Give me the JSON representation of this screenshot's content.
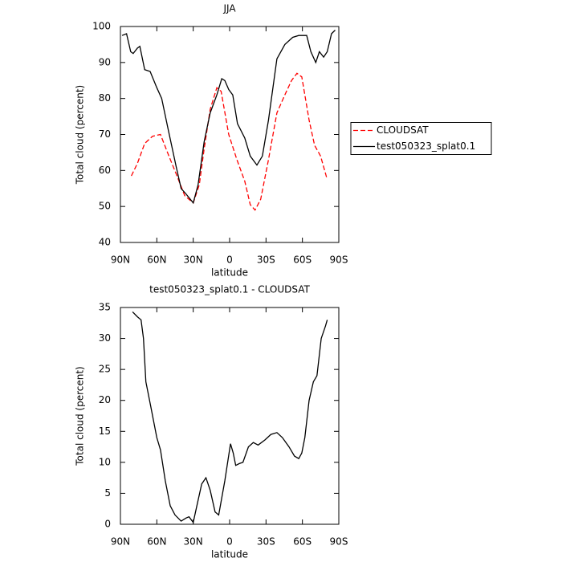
{
  "chart_data": [
    {
      "type": "line",
      "title": "JJA",
      "xlabel": "latitude",
      "ylabel": "Total cloud (percent)",
      "xlim": [
        90,
        -90
      ],
      "ylim": [
        40,
        100
      ],
      "xticks": [
        {
          "value": 90,
          "label": "90N"
        },
        {
          "value": 60,
          "label": "60N"
        },
        {
          "value": 30,
          "label": "30N"
        },
        0,
        {
          "value": -30,
          "label": "30S"
        },
        {
          "value": -60,
          "label": "60S"
        },
        {
          "value": -90,
          "label": "90S"
        }
      ],
      "yticks": [
        40,
        50,
        60,
        70,
        80,
        90,
        100
      ],
      "legend": "right",
      "series": [
        {
          "name": "CLOUDSAT",
          "color": "#ff0000",
          "dash": true,
          "x": [
            81,
            76,
            70,
            63.5,
            57,
            50,
            44,
            37,
            30,
            25,
            21,
            16,
            10.5,
            7,
            0.7,
            -6,
            -12.5,
            -17,
            -21,
            -25.6,
            -32,
            -39,
            -45.5,
            -51,
            -55.5,
            -59.5,
            -65.5,
            -70,
            -75,
            -80
          ],
          "values": [
            58.5,
            62,
            67.5,
            69.5,
            70,
            64,
            59,
            53,
            51,
            56,
            66,
            77,
            83,
            82,
            70,
            63,
            57,
            50.5,
            49,
            52,
            63,
            76,
            81,
            85,
            87,
            86,
            74,
            67,
            64,
            58
          ]
        },
        {
          "name": "test050323_splat0.1",
          "color": "#000000",
          "dash": false,
          "x": [
            88.7,
            85,
            81.5,
            79.5,
            76,
            74,
            70,
            65.5,
            60,
            56,
            51,
            44,
            40,
            36,
            30,
            26,
            21,
            16,
            10.5,
            6.5,
            4,
            0.7,
            -2.6,
            -6.5,
            -12.5,
            -17,
            -22.5,
            -27,
            -32,
            -39,
            -45.5,
            -52,
            -57,
            -63.5,
            -67,
            -71,
            -74,
            -77.5,
            -80.5,
            -84,
            -87
          ],
          "values": [
            97.5,
            98,
            93,
            92.5,
            94,
            94.5,
            88,
            87.5,
            83,
            80,
            72,
            61,
            55,
            53.5,
            51,
            56,
            68,
            76,
            81,
            85.5,
            85,
            82.5,
            81,
            73,
            69,
            64,
            61.5,
            64,
            74,
            91,
            95,
            97,
            97.5,
            97.5,
            93,
            90,
            93,
            91.5,
            93,
            98,
            99
          ]
        }
      ]
    },
    {
      "type": "line",
      "title": "test050323_splat0.1 - CLOUDSAT",
      "xlabel": "latitude",
      "ylabel": "Total cloud (percent)",
      "xlim": [
        90,
        -90
      ],
      "ylim": [
        0,
        35
      ],
      "xticks": [
        {
          "value": 90,
          "label": "90N"
        },
        {
          "value": 60,
          "label": "60N"
        },
        {
          "value": 30,
          "label": "30N"
        },
        0,
        {
          "value": -30,
          "label": "30S"
        },
        {
          "value": -60,
          "label": "60S"
        },
        {
          "value": -90,
          "label": "90S"
        }
      ],
      "yticks": [
        0,
        5,
        10,
        15,
        20,
        25,
        30,
        35
      ],
      "series": [
        {
          "color": "#000000",
          "dash": false,
          "x": [
            80,
            76,
            73,
            71,
            69,
            65,
            60,
            57,
            53,
            49,
            45,
            40,
            36,
            33.5,
            30,
            27.5,
            23,
            19.5,
            16,
            12,
            9,
            4,
            -0.7,
            -3,
            -5,
            -8,
            -11,
            -15.5,
            -19.5,
            -23.5,
            -29,
            -34,
            -39,
            -43.5,
            -49,
            -53.5,
            -57,
            -59.5,
            -62,
            -65.5,
            -69,
            -72,
            -75.5,
            -79,
            -80.5
          ],
          "values": [
            34.3,
            33.5,
            33,
            30,
            23,
            19,
            14,
            12,
            7,
            3,
            1.5,
            0.5,
            1,
            1.2,
            0.3,
            2.5,
            6.5,
            7.5,
            5.5,
            2,
            1.5,
            7,
            13,
            11.5,
            9.5,
            9.8,
            10,
            12.5,
            13.2,
            12.8,
            13.6,
            14.5,
            14.8,
            14,
            12.5,
            11,
            10.6,
            11.5,
            14,
            20,
            23,
            24,
            30,
            32,
            33
          ]
        }
      ]
    }
  ]
}
